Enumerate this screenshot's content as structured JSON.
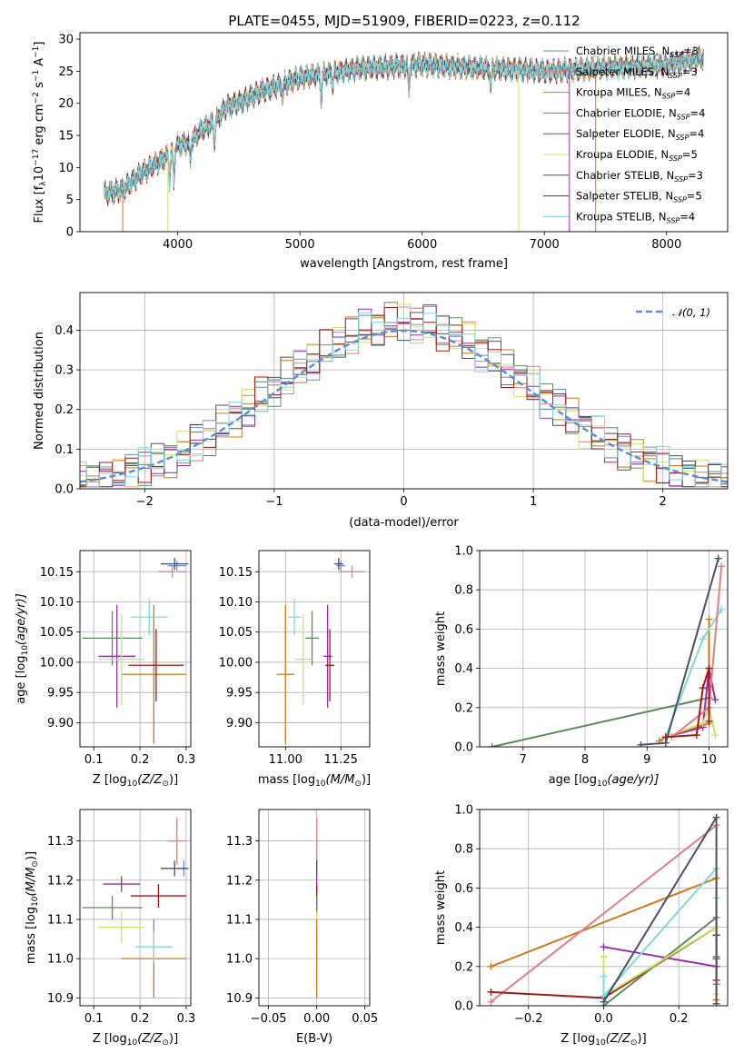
{
  "title": "PLATE=0455, MJD=51909, FIBERID=0223, z=0.112",
  "palette": {
    "Chabrier MILES": "#6b8fce",
    "Salpeter MILES": "#e27f86",
    "Kroupa MILES": "#d1781f",
    "Chabrier ELODIE": "#5f8b5c",
    "Salpeter ELODIE": "#9b2ca8",
    "Kroupa ELODIE": "#cfe36b",
    "Chabrier STELIB": "#4a5066",
    "Salpeter STELIB": "#a51818",
    "Kroupa STELIB": "#7fd9dd"
  },
  "chart_data": [
    {
      "id": "spectrum",
      "type": "line",
      "title": "PLATE=0455, MJD=51909, FIBERID=0223, z=0.112",
      "xlabel": "wavelength [Angstrom, rest frame]",
      "ylabel_parts": [
        "Flux [f",
        "λ",
        "10",
        "−17",
        " erg cm",
        "−2",
        " s",
        "−1",
        " A",
        "−1",
        "]"
      ],
      "xlim": [
        3200,
        8500
      ],
      "ylim": [
        0,
        31
      ],
      "xticks": [
        "4000",
        "5000",
        "6000",
        "7000",
        "8000"
      ],
      "yticks": [
        "0",
        "5",
        "10",
        "15",
        "20",
        "25",
        "30"
      ],
      "grid": false,
      "legend_position": "top-right",
      "legend": [
        {
          "name": "Chabrier MILES",
          "nssp": "3"
        },
        {
          "name": "Salpeter MILES",
          "nssp": "3"
        },
        {
          "name": "Kroupa MILES",
          "nssp": "4"
        },
        {
          "name": "Chabrier ELODIE",
          "nssp": "4"
        },
        {
          "name": "Salpeter ELODIE",
          "nssp": "4"
        },
        {
          "name": "Kroupa ELODIE",
          "nssp": "5"
        },
        {
          "name": "Chabrier STELIB",
          "nssp": "3"
        },
        {
          "name": "Salpeter STELIB",
          "nssp": "5"
        },
        {
          "name": "Kroupa STELIB",
          "nssp": "4"
        }
      ],
      "continuum": [
        [
          3400,
          6
        ],
        [
          3550,
          6.5
        ],
        [
          3700,
          9
        ],
        [
          3900,
          11.5
        ],
        [
          4000,
          13.5
        ],
        [
          4100,
          14
        ],
        [
          4200,
          16
        ],
        [
          4300,
          17
        ],
        [
          4400,
          19.5
        ],
        [
          4500,
          20
        ],
        [
          4700,
          22
        ],
        [
          5000,
          24
        ],
        [
          5200,
          24.5
        ],
        [
          5500,
          25.5
        ],
        [
          6000,
          26
        ],
        [
          6500,
          25.5
        ],
        [
          7000,
          25
        ],
        [
          7500,
          25.5
        ],
        [
          8000,
          26
        ],
        [
          8300,
          27
        ]
      ],
      "absorption": [
        [
          3934,
          4
        ],
        [
          3969,
          5
        ],
        [
          4102,
          3
        ],
        [
          4300,
          3
        ],
        [
          4861,
          2
        ],
        [
          5175,
          4
        ],
        [
          5270,
          2
        ],
        [
          5890,
          4
        ],
        [
          6563,
          3
        ],
        [
          8542,
          3
        ]
      ]
    },
    {
      "id": "residuals",
      "type": "bar",
      "xlabel": "(data-model)/error",
      "ylabel": "Normed distribution",
      "xlim": [
        -2.5,
        2.5
      ],
      "ylim": [
        0,
        0.495
      ],
      "xticks": [
        "−2",
        "−1",
        "0",
        "1",
        "2"
      ],
      "yticks": [
        "0.0",
        "0.1",
        "0.2",
        "0.3",
        "0.4"
      ],
      "grid": true,
      "legend_position": "top-right",
      "legend": [
        {
          "name": "𝒩(0, 1)"
        }
      ],
      "bin_width": 0.1,
      "reference": {
        "mean": 0,
        "sigma": 1
      }
    },
    {
      "id": "age-vs-z",
      "type": "scatter",
      "xlabel_parts": [
        "Z [log",
        "10",
        "(Z/Z",
        "⊙",
        ")]"
      ],
      "ylabel_parts": [
        "age  [log",
        "10",
        "(age/yr)]"
      ],
      "xlim": [
        0.07,
        0.31
      ],
      "ylim": [
        9.86,
        10.185
      ],
      "xticks": [
        "0.1",
        "0.2",
        "0.3"
      ],
      "yticks": [
        "9.90",
        "9.95",
        "10.00",
        "10.05",
        "10.10",
        "10.15"
      ],
      "grid": true,
      "points": [
        {
          "model": "Chabrier MILES",
          "x": 0.28,
          "y": 10.16,
          "xerr": 0.02,
          "yerr": 0.008
        },
        {
          "model": "Salpeter MILES",
          "x": 0.27,
          "y": 10.15,
          "xerr": 0.03,
          "yerr": 0.01
        },
        {
          "model": "Kroupa MILES",
          "x": 0.23,
          "y": 9.98,
          "xerr": 0.07,
          "yerr": 0.115
        },
        {
          "model": "Chabrier ELODIE",
          "x": 0.14,
          "y": 10.04,
          "xerr": 0.065,
          "yerr": 0.045
        },
        {
          "model": "Salpeter ELODIE",
          "x": 0.15,
          "y": 10.01,
          "xerr": 0.04,
          "yerr": 0.085
        },
        {
          "model": "Kroupa ELODIE",
          "x": 0.16,
          "y": 10.005,
          "xerr": 0.05,
          "yerr": 0.075
        },
        {
          "model": "Chabrier STELIB",
          "x": 0.275,
          "y": 10.163,
          "xerr": 0.03,
          "yerr": 0.01
        },
        {
          "model": "Salpeter STELIB",
          "x": 0.235,
          "y": 9.995,
          "xerr": 0.06,
          "yerr": 0.06
        },
        {
          "model": "Kroupa STELIB",
          "x": 0.22,
          "y": 10.075,
          "xerr": 0.04,
          "yerr": 0.03
        }
      ]
    },
    {
      "id": "age-vs-mass",
      "type": "scatter",
      "xlabel_parts": [
        "mass [log",
        "10",
        "(M/M",
        "⊙",
        ")]"
      ],
      "xlim": [
        10.88,
        11.38
      ],
      "ylim": [
        9.86,
        10.185
      ],
      "xticks": [
        "11.00",
        "11.25"
      ],
      "yticks": [
        "9.90",
        "9.95",
        "10.00",
        "10.05",
        "10.10",
        "10.15"
      ],
      "grid": true,
      "points": [
        {
          "model": "Chabrier MILES",
          "x": 11.25,
          "y": 10.16,
          "xerr": 0.02,
          "yerr": 0.008
        },
        {
          "model": "Salpeter MILES",
          "x": 11.3,
          "y": 10.15,
          "xerr": 0.06,
          "yerr": 0.01
        },
        {
          "model": "Kroupa MILES",
          "x": 11.0,
          "y": 9.98,
          "xerr": 0.04,
          "yerr": 0.115
        },
        {
          "model": "Chabrier ELODIE",
          "x": 11.12,
          "y": 10.04,
          "xerr": 0.03,
          "yerr": 0.045
        },
        {
          "model": "Salpeter ELODIE",
          "x": 11.19,
          "y": 10.01,
          "xerr": 0.02,
          "yerr": 0.085
        },
        {
          "model": "Kroupa ELODIE",
          "x": 11.08,
          "y": 10.005,
          "xerr": 0.04,
          "yerr": 0.075
        },
        {
          "model": "Chabrier STELIB",
          "x": 11.24,
          "y": 10.163,
          "xerr": 0.02,
          "yerr": 0.01
        },
        {
          "model": "Salpeter STELIB",
          "x": 11.2,
          "y": 9.995,
          "xerr": 0.02,
          "yerr": 0.06
        },
        {
          "model": "Kroupa STELIB",
          "x": 11.04,
          "y": 10.075,
          "xerr": 0.03,
          "yerr": 0.03
        }
      ]
    },
    {
      "id": "weight-vs-age",
      "type": "line",
      "xlabel_parts": [
        "age  [log",
        "10",
        "(age/yr)]"
      ],
      "ylabel": "mass weight",
      "xlim": [
        6.3,
        10.3
      ],
      "ylim": [
        0,
        1
      ],
      "xticks": [
        "7",
        "8",
        "9",
        "10"
      ],
      "yticks": [
        "0.0",
        "0.2",
        "0.4",
        "0.6",
        "0.8",
        "1.0"
      ],
      "grid": true,
      "series": [
        {
          "model": "Kroupa MILES",
          "x": [
            9.2,
            9.3,
            10.0,
            10.0
          ],
          "y": [
            0.03,
            0.05,
            0.12,
            0.65
          ]
        },
        {
          "model": "Chabrier ELODIE",
          "x": [
            6.5,
            10.0
          ],
          "y": [
            0.0,
            0.25
          ]
        },
        {
          "model": "Salpeter ELODIE",
          "x": [
            9.3,
            9.9,
            10.0,
            10.1
          ],
          "y": [
            0.05,
            0.1,
            0.4,
            0.24
          ]
        },
        {
          "model": "Kroupa ELODIE",
          "x": [
            9.3,
            9.9,
            10.0,
            10.1
          ],
          "y": [
            0.05,
            0.12,
            0.2,
            0.06
          ]
        },
        {
          "model": "Kroupa STELIB",
          "x": [
            9.3,
            9.9,
            10.2
          ],
          "y": [
            0.05,
            0.55,
            0.7
          ]
        },
        {
          "model": "Salpeter MILES",
          "x": [
            9.4,
            10.0,
            10.2
          ],
          "y": [
            0.05,
            0.2,
            0.92
          ]
        },
        {
          "model": "Salpeter STELIB",
          "x": [
            9.3,
            9.8,
            9.9,
            10.0,
            10.0
          ],
          "y": [
            0.05,
            0.06,
            0.3,
            0.4,
            0.13
          ]
        },
        {
          "model": "Chabrier STELIB",
          "x": [
            8.9,
            9.3,
            10.15
          ],
          "y": [
            0.01,
            0.02,
            0.96
          ]
        }
      ]
    },
    {
      "id": "mass-vs-z",
      "type": "scatter",
      "xlabel_parts": [
        "Z [log",
        "10",
        "(Z/Z",
        "⊙",
        ")]"
      ],
      "ylabel_parts": [
        "mass [log",
        "10",
        "(M/M",
        "⊙",
        ")]"
      ],
      "xlim": [
        0.07,
        0.31
      ],
      "ylim": [
        10.88,
        11.38
      ],
      "xticks": [
        "0.1",
        "0.2",
        "0.3"
      ],
      "yticks": [
        "10.9",
        "11.0",
        "11.1",
        "11.2",
        "11.3"
      ],
      "grid": true,
      "points": [
        {
          "model": "Chabrier MILES",
          "x": 0.295,
          "y": 11.23,
          "xerr": 0.005,
          "yerr": 0.02
        },
        {
          "model": "Salpeter MILES",
          "x": 0.28,
          "y": 11.3,
          "xerr": 0.02,
          "yerr": 0.06
        },
        {
          "model": "Kroupa MILES",
          "x": 0.23,
          "y": 11.0,
          "xerr": 0.07,
          "yerr": 0.1
        },
        {
          "model": "Chabrier ELODIE",
          "x": 0.14,
          "y": 11.13,
          "xerr": 0.065,
          "yerr": 0.03
        },
        {
          "model": "Salpeter ELODIE",
          "x": 0.16,
          "y": 11.19,
          "xerr": 0.04,
          "yerr": 0.02
        },
        {
          "model": "Kroupa ELODIE",
          "x": 0.16,
          "y": 11.08,
          "xerr": 0.05,
          "yerr": 0.04
        },
        {
          "model": "Chabrier STELIB",
          "x": 0.275,
          "y": 11.23,
          "xerr": 0.03,
          "yerr": 0.02
        },
        {
          "model": "Salpeter STELIB",
          "x": 0.24,
          "y": 11.16,
          "xerr": 0.06,
          "yerr": 0.03
        },
        {
          "model": "Kroupa STELIB",
          "x": 0.23,
          "y": 11.03,
          "xerr": 0.04,
          "yerr": 0.04
        }
      ]
    },
    {
      "id": "mass-vs-ebv",
      "type": "scatter",
      "xlabel": "E(B-V)",
      "xlim": [
        -0.06,
        0.055
      ],
      "ylim": [
        10.88,
        11.38
      ],
      "xticks": [
        "−0.05",
        "0.00",
        "0.05"
      ],
      "yticks": [
        "10.9",
        "11.0",
        "11.1",
        "11.2",
        "11.3"
      ],
      "grid": true,
      "points": [
        {
          "model": "Salpeter MILES",
          "x": 0,
          "y": 11.3,
          "xerr": 0,
          "yerr": 0.06
        },
        {
          "model": "Chabrier MILES",
          "x": 0,
          "y": 11.23,
          "xerr": 0,
          "yerr": 0.02
        },
        {
          "model": "Chabrier STELIB",
          "x": 0,
          "y": 11.23,
          "xerr": 0,
          "yerr": 0.02
        },
        {
          "model": "Salpeter ELODIE",
          "x": 0,
          "y": 11.19,
          "xerr": 0,
          "yerr": 0.02
        },
        {
          "model": "Salpeter STELIB",
          "x": 0,
          "y": 11.16,
          "xerr": 0,
          "yerr": 0.03
        },
        {
          "model": "Chabrier ELODIE",
          "x": 0,
          "y": 11.13,
          "xerr": 0,
          "yerr": 0.03
        },
        {
          "model": "Kroupa ELODIE",
          "x": 0,
          "y": 11.08,
          "xerr": 0,
          "yerr": 0.04
        },
        {
          "model": "Kroupa STELIB",
          "x": 0,
          "y": 11.03,
          "xerr": 0,
          "yerr": 0.04
        },
        {
          "model": "Kroupa MILES",
          "x": 0,
          "y": 11.0,
          "xerr": 0,
          "yerr": 0.1
        }
      ]
    },
    {
      "id": "weight-vs-z",
      "type": "line",
      "xlabel_parts": [
        "Z [log",
        "10",
        "(Z/Z",
        "⊙",
        ")]"
      ],
      "ylabel": "mass weight",
      "xlim": [
        -0.33,
        0.33
      ],
      "ylim": [
        0,
        1
      ],
      "xticks": [
        "−0.2",
        "0.0",
        "0.2"
      ],
      "yticks": [
        "0.0",
        "0.2",
        "0.4",
        "0.6",
        "0.8",
        "1.0"
      ],
      "grid": true,
      "series": [
        {
          "model": "Kroupa MILES",
          "x": [
            -0.3,
            0.3,
            0.3,
            0.3
          ],
          "y": [
            0.2,
            0.65,
            0.11,
            0.03
          ]
        },
        {
          "model": "Salpeter MILES",
          "x": [
            -0.3,
            0.3
          ],
          "y": [
            0.02,
            0.92
          ]
        },
        {
          "model": "Salpeter STELIB",
          "x": [
            -0.3,
            0.0,
            0.3,
            0.3,
            0.3
          ],
          "y": [
            0.07,
            0.04,
            0.4,
            0.13,
            0.36
          ]
        },
        {
          "model": "Salpeter ELODIE",
          "x": [
            0.0,
            0.3,
            0.3
          ],
          "y": [
            0.3,
            0.2,
            0.24
          ]
        },
        {
          "model": "Chabrier ELODIE",
          "x": [
            0.0,
            0.3,
            0.3
          ],
          "y": [
            0.0,
            0.45,
            0.25
          ]
        },
        {
          "model": "Kroupa ELODIE",
          "x": [
            0.0,
            0.0,
            0.3,
            0.3
          ],
          "y": [
            0.25,
            0.05,
            0.4,
            0.06
          ]
        },
        {
          "model": "Kroupa STELIB",
          "x": [
            0.0,
            0.0,
            0.3,
            0.3
          ],
          "y": [
            0.15,
            0.05,
            0.7,
            0.55
          ]
        },
        {
          "model": "Chabrier STELIB",
          "x": [
            0.0,
            0.3,
            0.3
          ],
          "y": [
            0.02,
            0.96,
            0.01
          ]
        }
      ]
    }
  ]
}
